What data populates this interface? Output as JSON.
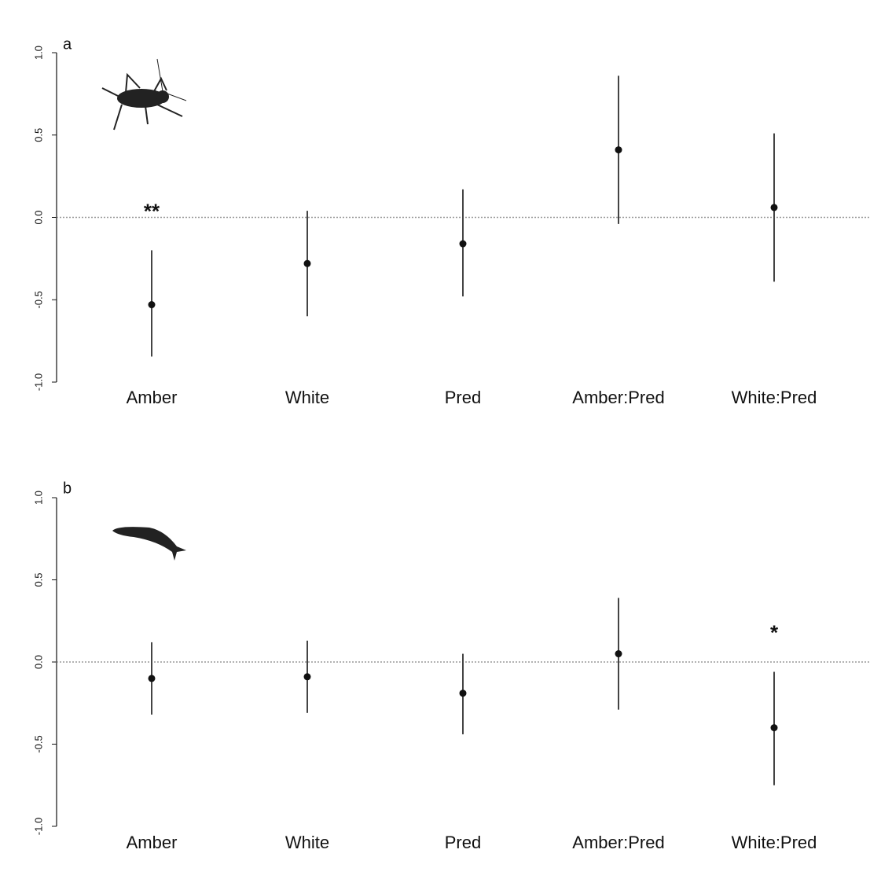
{
  "chart_data": [
    {
      "type": "errorbar",
      "panel_label": "a",
      "categories": [
        "Amber",
        "White",
        "Pred",
        "Amber:Pred",
        "White:Pred"
      ],
      "values": [
        -0.53,
        -0.28,
        -0.16,
        0.41,
        0.06
      ],
      "lower": [
        -0.845,
        -0.6,
        -0.48,
        -0.04,
        -0.39
      ],
      "upper": [
        -0.2,
        0.04,
        0.17,
        0.86,
        0.51
      ],
      "ylim": [
        -1,
        1
      ],
      "yticks": [
        {
          "value": -1,
          "label": "-1.0"
        },
        -0.5,
        {
          "value": 0,
          "label": "0.0"
        },
        0.5,
        {
          "value": 1,
          "label": "1.0"
        }
      ],
      "reference_line": 0,
      "color": "#111111",
      "annotations": [
        {
          "text": "**",
          "category": "Amber"
        }
      ]
    },
    {
      "type": "errorbar",
      "panel_label": "b",
      "categories": [
        "Amber",
        "White",
        "Pred",
        "Amber:Pred",
        "White:Pred"
      ],
      "values": [
        -0.1,
        -0.09,
        -0.19,
        0.05,
        -0.4
      ],
      "lower": [
        -0.32,
        -0.31,
        -0.44,
        -0.29,
        -0.75
      ],
      "upper": [
        0.12,
        0.13,
        0.05,
        0.39,
        -0.06
      ],
      "ylim": [
        -1,
        1
      ],
      "yticks": [
        {
          "value": -1,
          "label": "-1.0"
        },
        -0.5,
        {
          "value": 0,
          "label": "0.0"
        },
        0.5,
        {
          "value": 1,
          "label": "1.0"
        }
      ],
      "reference_line": 0,
      "color": "#111111",
      "annotations": [
        {
          "text": "*",
          "category": "White:Pred"
        }
      ]
    }
  ]
}
